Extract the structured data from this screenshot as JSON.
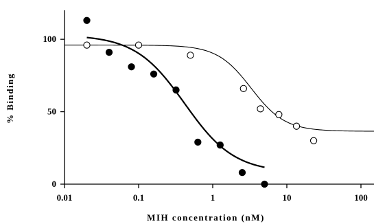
{
  "chart_data": {
    "type": "scatter",
    "xlabel": "MIH concentration (nM)",
    "ylabel": "% Binding",
    "x_scale": "log",
    "xlim": [
      0.01,
      150
    ],
    "ylim": [
      0,
      120
    ],
    "x_ticks": [
      0.01,
      0.1,
      1,
      10,
      100
    ],
    "x_tick_labels": [
      "0.01",
      "0.1",
      "1",
      "10",
      "100"
    ],
    "y_ticks": [
      0,
      50,
      100
    ],
    "y_tick_labels": [
      "0",
      "50",
      "100"
    ],
    "grid": false,
    "series": [
      {
        "marker": "filled-circle",
        "color": "#000000",
        "points": [
          {
            "x": 0.02,
            "y": 113
          },
          {
            "x": 0.04,
            "y": 91
          },
          {
            "x": 0.08,
            "y": 81
          },
          {
            "x": 0.16,
            "y": 76
          },
          {
            "x": 0.32,
            "y": 65
          },
          {
            "x": 0.63,
            "y": 29
          },
          {
            "x": 1.26,
            "y": 27
          },
          {
            "x": 2.5,
            "y": 8
          },
          {
            "x": 5.0,
            "y": 0
          }
        ],
        "fit": {
          "top": 103,
          "bottom": 8,
          "ic50": 0.42,
          "slope": 1.3,
          "x_range": [
            0.02,
            5.0
          ],
          "line_width": 2.2
        }
      },
      {
        "marker": "open-circle",
        "color": "#000000",
        "points": [
          {
            "x": 0.02,
            "y": 96
          },
          {
            "x": 0.1,
            "y": 96
          },
          {
            "x": 0.5,
            "y": 89
          },
          {
            "x": 2.6,
            "y": 66
          },
          {
            "x": 4.4,
            "y": 52
          },
          {
            "x": 7.8,
            "y": 48
          },
          {
            "x": 13.5,
            "y": 40
          },
          {
            "x": 23.0,
            "y": 30
          }
        ],
        "fit": {
          "top": 96,
          "bottom": 36.5,
          "ic50": 3.3,
          "slope": 1.9,
          "x_range": [
            0.01,
            150
          ],
          "line_width": 1.1
        }
      }
    ]
  }
}
